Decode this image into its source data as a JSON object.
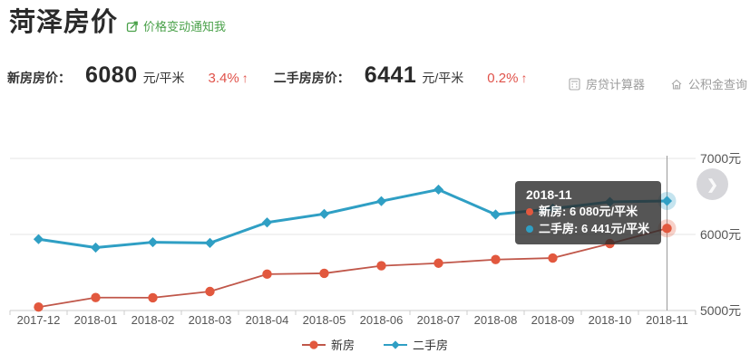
{
  "page": {
    "title": "菏泽房价",
    "notify_label": "价格变动通知我",
    "tools": [
      {
        "label": "房贷计算器"
      },
      {
        "label": "公积金查询"
      }
    ],
    "next_arrow": "❯"
  },
  "colors": {
    "link_green": "#4aa14a",
    "change_red": "#e0524a",
    "new_house_line": "#c0574a",
    "new_house_marker": "#e2583e",
    "second_hand_line": "#2f9fc4",
    "axis_text": "#555555",
    "grid_line": "#e4e4e4"
  },
  "stats": {
    "new_label": "新房房价：",
    "new_price": "6080",
    "new_unit": "元/平米",
    "new_change": "3.4%",
    "used_label": "二手房房价：",
    "used_price": "6441",
    "used_unit": "元/平米",
    "used_change": "0.2%",
    "up_arrow": "↑"
  },
  "tooltip": {
    "title": "2018-11",
    "rows": [
      {
        "text": "新房: 6 080元/平米"
      },
      {
        "text": "二手房: 6 441元/平米"
      }
    ]
  },
  "chart_data": {
    "type": "line",
    "categories": [
      "2017-12",
      "2018-01",
      "2018-02",
      "2018-03",
      "2018-04",
      "2018-05",
      "2018-06",
      "2018-07",
      "2018-08",
      "2018-09",
      "2018-10",
      "2018-11"
    ],
    "series": [
      {
        "name": "新房",
        "key": "new-house",
        "marker": "circle",
        "color": "#c0574a",
        "marker_color": "#e2583e",
        "width": 1.8,
        "values": [
          5045,
          5170,
          5168,
          5250,
          5478,
          5489,
          5588,
          5622,
          5670,
          5690,
          5880,
          6080
        ]
      },
      {
        "name": "二手房",
        "key": "second-hand",
        "marker": "diamond",
        "color": "#2f9fc4",
        "marker_color": "#2f9fc4",
        "width": 3,
        "values": [
          5938,
          5827,
          5898,
          5888,
          6158,
          6270,
          6438,
          6590,
          6262,
          6340,
          6428,
          6441
        ]
      }
    ],
    "ylim": [
      5000,
      7000
    ],
    "yticks": [
      {
        "v": 5000,
        "label": "5000元"
      },
      {
        "v": 6000,
        "label": "6000元"
      },
      {
        "v": 7000,
        "label": "7000元"
      }
    ],
    "xlabel": "",
    "ylabel": "",
    "grid": true,
    "legend_position": "bottom",
    "hover_index": 11
  }
}
